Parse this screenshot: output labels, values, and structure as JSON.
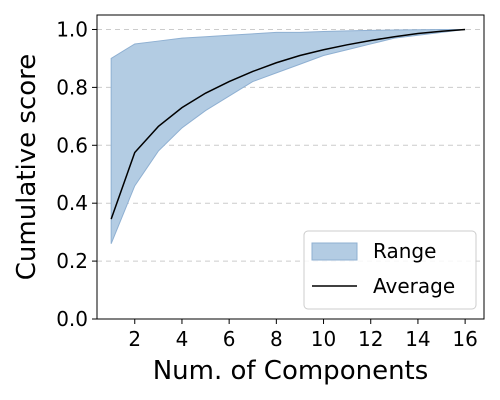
{
  "chart_data": {
    "type": "area",
    "xlabel": "Num. of Components",
    "ylabel": "Cumulative score",
    "xlim": [
      0.4,
      16.8
    ],
    "ylim": [
      0.0,
      1.05
    ],
    "xticks": [
      2,
      4,
      6,
      8,
      10,
      12,
      14,
      16
    ],
    "yticks": [
      0.0,
      0.2,
      0.4,
      0.6,
      0.8,
      1.0
    ],
    "xtick_labels": [
      "2",
      "4",
      "6",
      "8",
      "10",
      "12",
      "14",
      "16"
    ],
    "ytick_labels": [
      "0.0",
      "0.2",
      "0.4",
      "0.6",
      "0.8",
      "1.0"
    ],
    "grid": "horizontal dashed",
    "legend_position": "lower-right",
    "x": [
      1,
      2,
      3,
      4,
      5,
      6,
      7,
      8,
      9,
      10,
      11,
      12,
      13,
      14,
      15,
      16
    ],
    "series": [
      {
        "name": "Range",
        "kind": "band",
        "color": "#b3cce3",
        "edge_color": "#8fb0d2",
        "lower": [
          0.26,
          0.46,
          0.58,
          0.66,
          0.72,
          0.77,
          0.82,
          0.85,
          0.88,
          0.91,
          0.93,
          0.95,
          0.97,
          0.98,
          0.99,
          1.0
        ],
        "upper": [
          0.9,
          0.95,
          0.96,
          0.97,
          0.975,
          0.98,
          0.985,
          0.99,
          0.99,
          0.993,
          0.995,
          0.997,
          0.998,
          0.999,
          1.0,
          1.0
        ]
      },
      {
        "name": "Average",
        "kind": "line",
        "color": "#000000",
        "values": [
          0.345,
          0.575,
          0.665,
          0.73,
          0.78,
          0.82,
          0.855,
          0.885,
          0.91,
          0.93,
          0.947,
          0.962,
          0.975,
          0.986,
          0.994,
          1.0
        ]
      }
    ]
  }
}
